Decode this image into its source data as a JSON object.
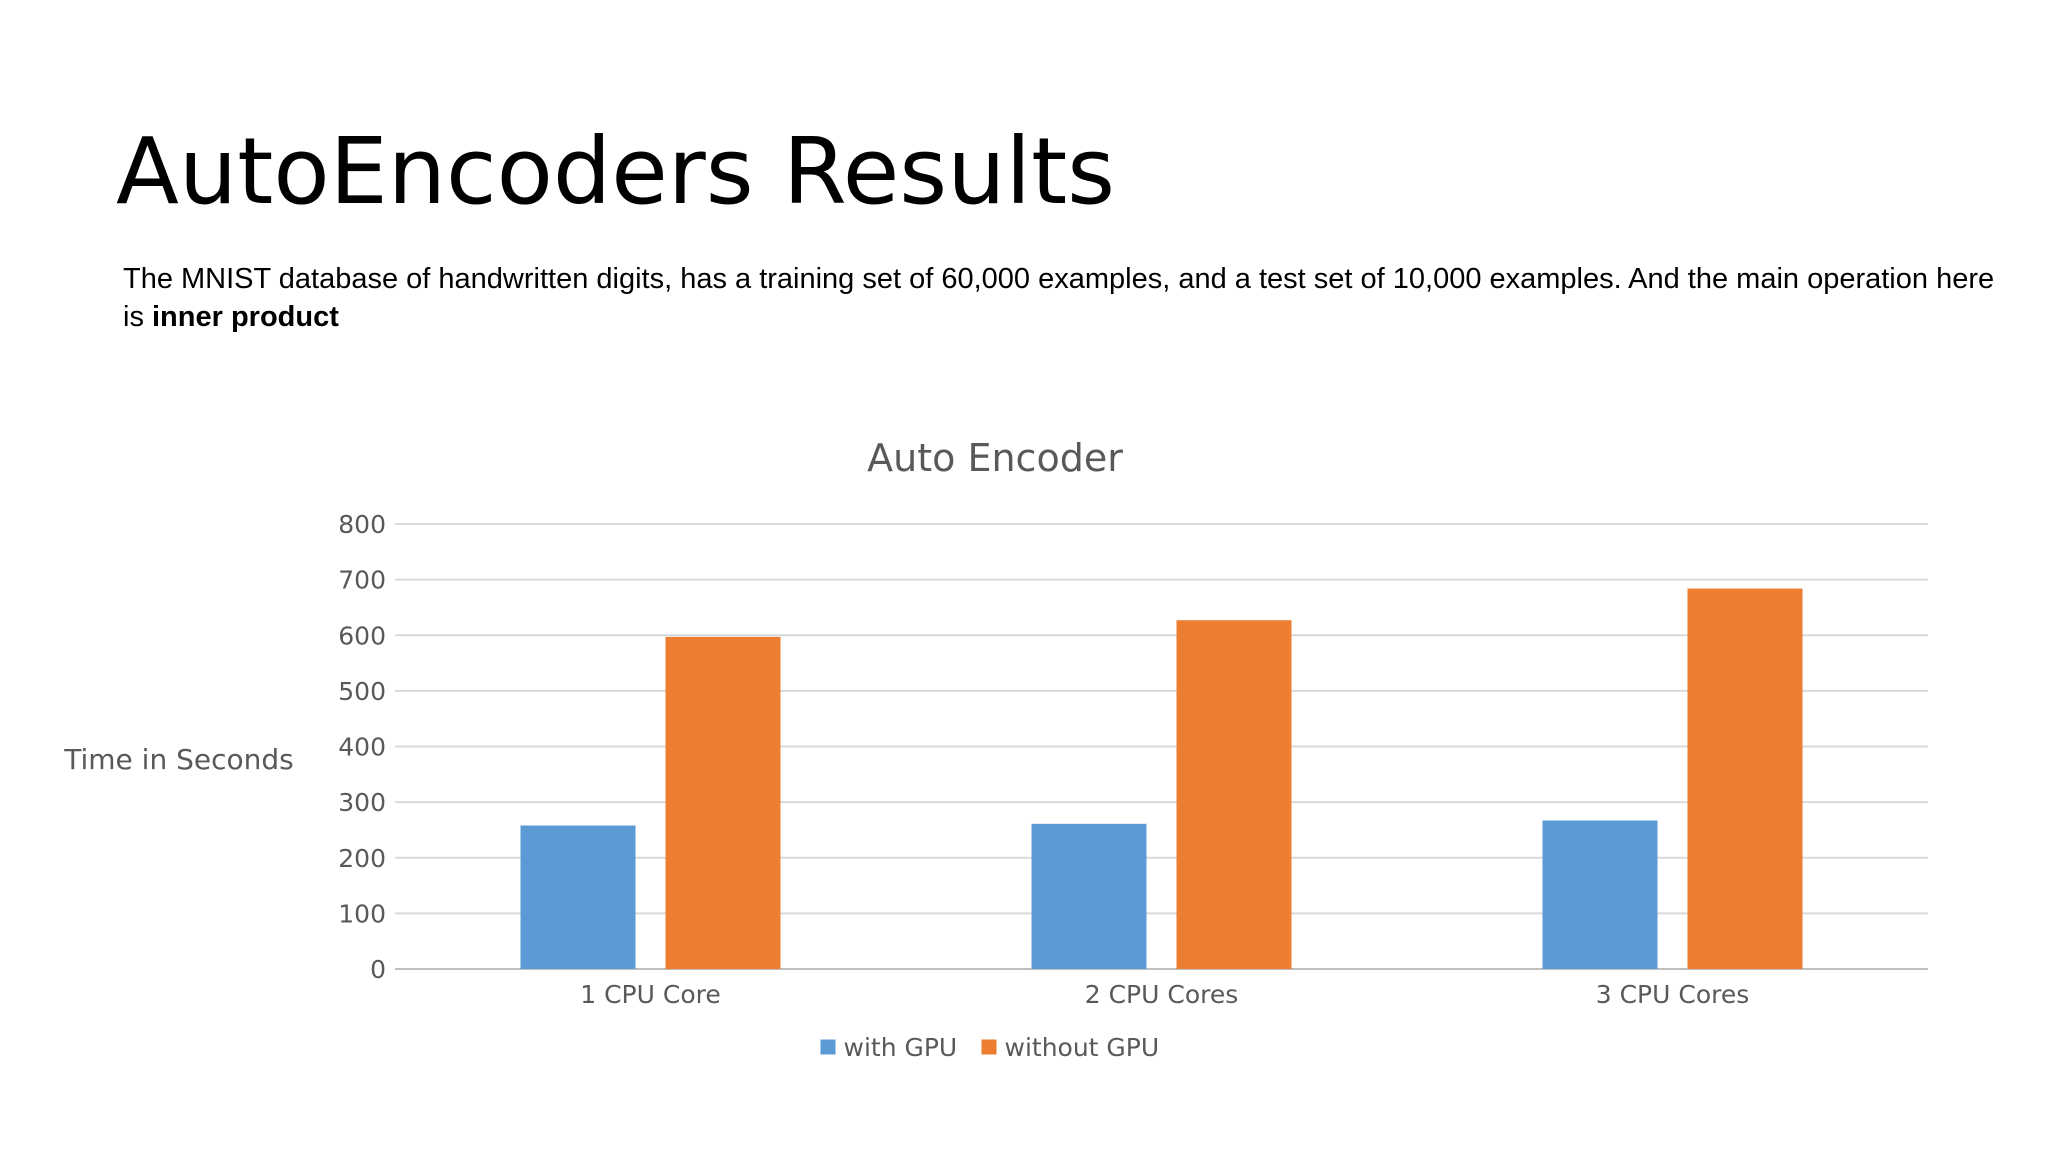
{
  "slide": {
    "title": "AutoEncoders Results",
    "body_text": "The MNIST database of handwritten digits, has a training set of 60,000 examples, and a test set of 10,000 examples. And the main operation here is ",
    "body_bold": "inner product"
  },
  "chart_data": {
    "type": "bar",
    "title": "Auto Encoder",
    "xlabel": "",
    "ylabel": "Time in Seconds",
    "categories": [
      "1 CPU Core",
      "2 CPU Cores",
      "3 CPU Cores"
    ],
    "series": [
      {
        "name": "with GPU",
        "values": [
          258,
          261,
          267
        ],
        "color": "#5B9BD5"
      },
      {
        "name": "without GPU",
        "values": [
          597,
          627,
          684
        ],
        "color": "#ED7D31"
      }
    ],
    "ylim": [
      0,
      800
    ],
    "yticks": [
      0,
      100,
      200,
      300,
      400,
      500,
      600,
      700,
      800
    ],
    "grid": true,
    "legend_position": "bottom"
  }
}
